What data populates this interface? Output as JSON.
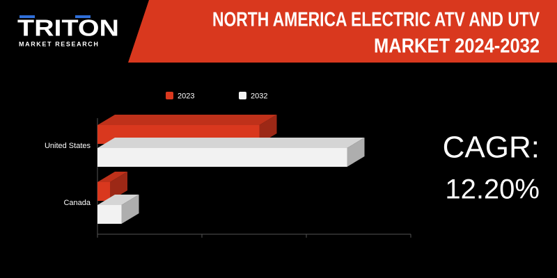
{
  "chart_data": {
    "type": "bar3d",
    "orientation": "horizontal",
    "brand": "TRITON",
    "brand_subtitle": "MARKET RESEARCH",
    "title_lines": [
      "NORTH AMERICA ELECTRIC ATV AND UTV",
      "MARKET 2024-2032"
    ],
    "categories": [
      "United States",
      "Canada"
    ],
    "series": [
      {
        "name": "2023",
        "color": "#d9381e",
        "values": [
          1.55,
          0.12
        ]
      },
      {
        "name": "2032",
        "color": "#f2f2f2",
        "values": [
          2.39,
          0.23
        ]
      }
    ],
    "xlim": [
      0,
      3
    ],
    "xticks": [
      0,
      1,
      2,
      3
    ],
    "legend": "top",
    "cagr_label": "CAGR:",
    "cagr_value": "12.20%"
  }
}
